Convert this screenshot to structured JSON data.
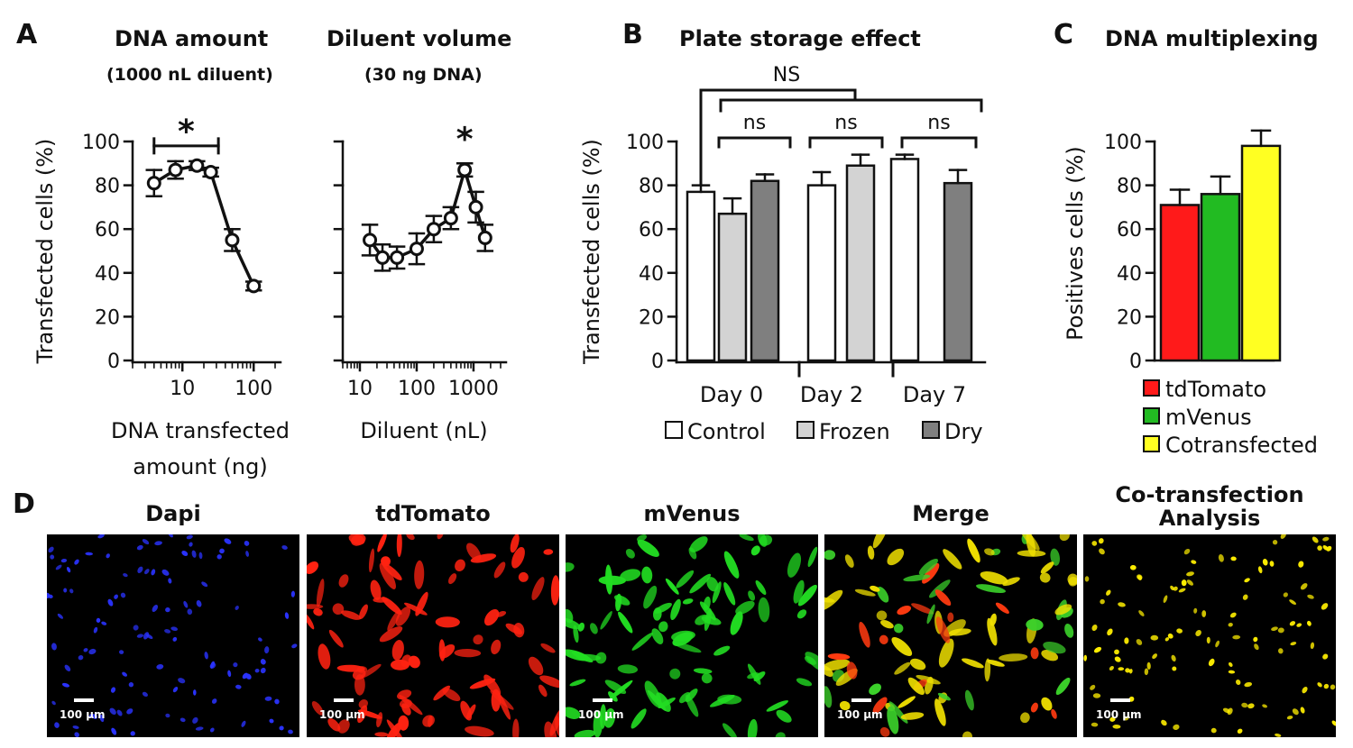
{
  "panel_letters": {
    "a": "A",
    "b": "B",
    "c": "C",
    "d": "D"
  },
  "panel_a": {
    "left_title": "DNA amount",
    "left_subtitle": "(1000 nL diluent)",
    "right_title": "Diluent volume",
    "right_subtitle": "(30 ng DNA)"
  },
  "panel_b": {
    "title": "Plate storage effect"
  },
  "panel_c": {
    "title": "DNA multiplexing"
  },
  "panel_d": {
    "titles": [
      "Dapi",
      "tdTomato",
      "mVenus",
      "Merge",
      "Co-transfection\nAnalysis"
    ],
    "scale_label": "100 µm",
    "colors": [
      "#2a33ff",
      "#ff2211",
      "#22dd22",
      "#e8d800",
      "#ffee00"
    ]
  },
  "chart_data": [
    {
      "type": "line",
      "title": "DNA amount",
      "subtitle": "(1000 nL diluent)",
      "xlabel": "DNA transfected amount (ng)",
      "ylabel": "Transfected cells (%)",
      "xscale": "log",
      "xlim": [
        2,
        200
      ],
      "xticks": [
        10,
        100
      ],
      "ylim": [
        0,
        100
      ],
      "yticks": [
        0,
        20,
        40,
        60,
        80,
        100
      ],
      "series": [
        {
          "x": [
            4,
            8,
            16,
            25,
            50,
            100
          ],
          "y": [
            81,
            87,
            89,
            86,
            55,
            34
          ],
          "err": [
            6,
            4,
            2,
            2,
            5,
            2
          ]
        }
      ],
      "annotations": [
        {
          "text": "*",
          "bracket_x": [
            4,
            32
          ],
          "y": 98
        }
      ]
    },
    {
      "type": "line",
      "title": "Diluent volume",
      "subtitle": "(30 ng DNA)",
      "xlabel": "Diluent (nL)",
      "xscale": "log",
      "xlim": [
        5,
        3000
      ],
      "xticks": [
        10,
        100,
        1000
      ],
      "ylim": [
        0,
        100
      ],
      "yticks": [
        0,
        20,
        40,
        60,
        80,
        100
      ],
      "series": [
        {
          "x": [
            15,
            25,
            45,
            100,
            200,
            400,
            700,
            1100,
            1600
          ],
          "y": [
            55,
            47,
            47,
            51,
            60,
            65,
            87,
            70,
            56
          ],
          "err": [
            7,
            6,
            5,
            7,
            6,
            5,
            3,
            7,
            6
          ]
        }
      ],
      "annotations": [
        {
          "text": "*",
          "x": 700,
          "y": 96
        }
      ]
    },
    {
      "type": "bar",
      "title": "Plate storage effect",
      "ylabel": "Transfected cells (%)",
      "ylim": [
        0,
        100
      ],
      "yticks": [
        0,
        20,
        40,
        60,
        80,
        100
      ],
      "categories": [
        "Day 0",
        "Day 2",
        "Day 7"
      ],
      "series": [
        {
          "name": "Control",
          "color": "#ffffff",
          "values": [
            77,
            80,
            92
          ],
          "err": [
            3,
            6,
            2
          ]
        },
        {
          "name": "Frozen",
          "color": "#d3d3d3",
          "values": [
            67,
            89,
            null
          ],
          "err": [
            7,
            5,
            null
          ]
        },
        {
          "name": "Dry",
          "color": "#7f7f7f",
          "values": [
            82,
            null,
            81
          ],
          "err": [
            3,
            null,
            6
          ]
        }
      ],
      "legend": [
        "Control",
        "Frozen",
        "Dry"
      ],
      "legend_position": "bottom",
      "annotations": [
        "ns",
        "ns",
        "ns",
        "NS"
      ]
    },
    {
      "type": "bar",
      "title": "DNA multiplexing",
      "ylabel": "Positives cells (%)",
      "ylim": [
        0,
        100
      ],
      "yticks": [
        0,
        20,
        40,
        60,
        80,
        100
      ],
      "categories": [
        "tdTomato",
        "mVenus",
        "Cotransfected"
      ],
      "values": [
        71,
        76,
        98
      ],
      "err": [
        7,
        8,
        7
      ],
      "colors": [
        "#ff1a1a",
        "#22bb22",
        "#ffff22"
      ],
      "legend": [
        "tdTomato",
        "mVenus",
        "Cotransfected"
      ],
      "legend_position": "bottom"
    }
  ]
}
